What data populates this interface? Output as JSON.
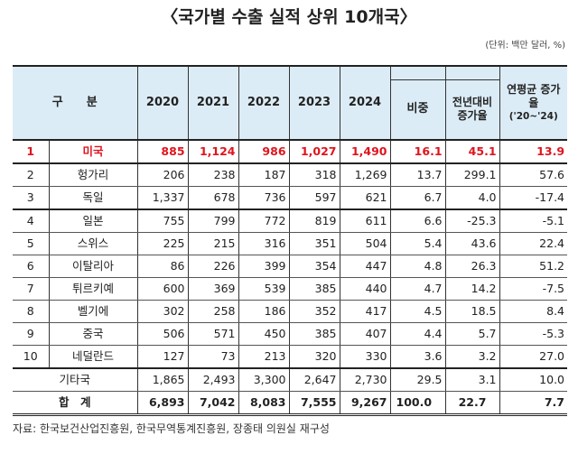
{
  "title": "〈국가별 수출 실적 상위 10개국〉",
  "unit": "(단위: 백만 달러, %)",
  "headers": {
    "category": "구　　분",
    "years": [
      "2020",
      "2021",
      "2022",
      "2023",
      "2024"
    ],
    "share": "비중",
    "yoy": "전년대비 증가율",
    "cagr": "연평균 증가율",
    "cagr_period": "('20~'24)"
  },
  "rows": [
    {
      "rank": "1",
      "country": "미국",
      "values": [
        "885",
        "1,124",
        "986",
        "1,027",
        "1,490"
      ],
      "share": "16.1",
      "yoy": "45.1",
      "cagr": "13.9"
    },
    {
      "rank": "2",
      "country": "헝가리",
      "values": [
        "206",
        "238",
        "187",
        "318",
        "1,269"
      ],
      "share": "13.7",
      "yoy": "299.1",
      "cagr": "57.6"
    },
    {
      "rank": "3",
      "country": "독일",
      "values": [
        "1,337",
        "678",
        "736",
        "597",
        "621"
      ],
      "share": "6.7",
      "yoy": "4.0",
      "cagr": "-17.4"
    },
    {
      "rank": "4",
      "country": "일본",
      "values": [
        "755",
        "799",
        "772",
        "819",
        "611"
      ],
      "share": "6.6",
      "yoy": "-25.3",
      "cagr": "-5.1"
    },
    {
      "rank": "5",
      "country": "스위스",
      "values": [
        "225",
        "215",
        "316",
        "351",
        "504"
      ],
      "share": "5.4",
      "yoy": "43.6",
      "cagr": "22.4"
    },
    {
      "rank": "6",
      "country": "이탈리아",
      "values": [
        "86",
        "226",
        "399",
        "354",
        "447"
      ],
      "share": "4.8",
      "yoy": "26.3",
      "cagr": "51.2"
    },
    {
      "rank": "7",
      "country": "튀르키예",
      "values": [
        "600",
        "369",
        "539",
        "385",
        "440"
      ],
      "share": "4.7",
      "yoy": "14.2",
      "cagr": "-7.5"
    },
    {
      "rank": "8",
      "country": "벨기에",
      "values": [
        "302",
        "258",
        "186",
        "352",
        "417"
      ],
      "share": "4.5",
      "yoy": "18.5",
      "cagr": "8.4"
    },
    {
      "rank": "9",
      "country": "중국",
      "values": [
        "506",
        "571",
        "450",
        "385",
        "407"
      ],
      "share": "4.4",
      "yoy": "5.7",
      "cagr": "-5.3"
    },
    {
      "rank": "10",
      "country": "네덜란드",
      "values": [
        "127",
        "73",
        "213",
        "320",
        "330"
      ],
      "share": "3.6",
      "yoy": "3.2",
      "cagr": "27.0"
    }
  ],
  "others": {
    "label": "기타국",
    "values": [
      "1,865",
      "2,493",
      "3,300",
      "2,647",
      "2,730"
    ],
    "share": "29.5",
    "yoy": "3.1",
    "cagr": "10.0"
  },
  "total": {
    "label": "합　계",
    "values": [
      "6,893",
      "7,042",
      "8,083",
      "7,555",
      "9,267"
    ],
    "share": "100.0",
    "yoy": "22.7",
    "cagr": "7.7"
  },
  "source": "자료: 한국보건산업진흥원, 한국무역통계진흥원, 장종태 의원실 재구성",
  "colors": {
    "highlight": "#e0141e",
    "header_bg": "#dcecf6"
  }
}
